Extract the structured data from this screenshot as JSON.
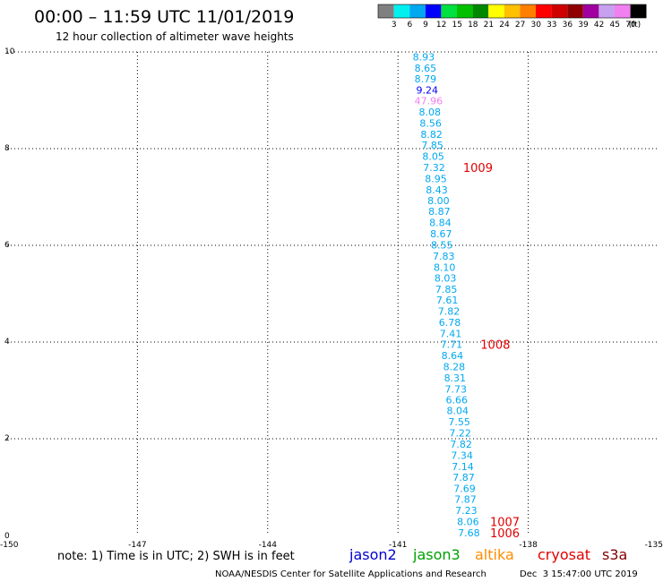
{
  "header": {
    "title": "00:00 – 11:59 UTC 11/01/2019",
    "subtitle": "12 hour collection of altimeter wave heights"
  },
  "legend": {
    "colors": [
      "#808080",
      "#00f0f0",
      "#00a8f0",
      "#0000ff",
      "#00e040",
      "#00c000",
      "#008800",
      "#ffff00",
      "#ffc000",
      "#ff8000",
      "#ff0000",
      "#d00000",
      "#900000",
      "#a000a0",
      "#c8a0f0",
      "#f080f0",
      "#000000"
    ],
    "labels": [
      "3",
      "6",
      "9",
      "12",
      "15",
      "18",
      "21",
      "24",
      "27",
      "30",
      "33",
      "36",
      "39",
      "42",
      "45",
      "70",
      "(ft)"
    ]
  },
  "chart_data": {
    "type": "scatter",
    "xlim": [
      -150,
      -135
    ],
    "ylim": [
      0,
      10
    ],
    "x_ticks": [
      "-150",
      "-147",
      "-144",
      "-141",
      "-138",
      "-135"
    ],
    "y_ticks": [
      "0",
      "2",
      "4",
      "6",
      "8",
      "10"
    ],
    "grid": true,
    "swh_points": [
      {
        "x": -140.66,
        "y": 9.9,
        "label": "8.93",
        "color": "#00a8f0"
      },
      {
        "x": -140.62,
        "y": 9.67,
        "label": "8.65",
        "color": "#00a8f0"
      },
      {
        "x": -140.62,
        "y": 9.44,
        "label": "8.79",
        "color": "#00a8f0"
      },
      {
        "x": -140.58,
        "y": 9.21,
        "label": "9.24",
        "color": "#0000ff"
      },
      {
        "x": -140.62,
        "y": 8.99,
        "label": "47.96",
        "color": "#f080f0"
      },
      {
        "x": -140.52,
        "y": 8.76,
        "label": "8.08",
        "color": "#00a8f0"
      },
      {
        "x": -140.5,
        "y": 8.53,
        "label": "8.56",
        "color": "#00a8f0"
      },
      {
        "x": -140.48,
        "y": 8.3,
        "label": "8.82",
        "color": "#00a8f0"
      },
      {
        "x": -140.46,
        "y": 8.07,
        "label": "7.85",
        "color": "#00a8f0"
      },
      {
        "x": -140.44,
        "y": 7.84,
        "label": "8.05",
        "color": "#00a8f0"
      },
      {
        "x": -140.42,
        "y": 7.61,
        "label": "7.32",
        "color": "#00a8f0"
      },
      {
        "x": -140.38,
        "y": 7.38,
        "label": "8.95",
        "color": "#00a8f0"
      },
      {
        "x": -140.36,
        "y": 7.15,
        "label": "8.43",
        "color": "#00a8f0"
      },
      {
        "x": -140.32,
        "y": 6.93,
        "label": "8.00",
        "color": "#00a8f0"
      },
      {
        "x": -140.3,
        "y": 6.7,
        "label": "8.87",
        "color": "#00a8f0"
      },
      {
        "x": -140.28,
        "y": 6.47,
        "label": "8.84",
        "color": "#00a8f0"
      },
      {
        "x": -140.26,
        "y": 6.24,
        "label": "8.67",
        "color": "#00a8f0"
      },
      {
        "x": -140.24,
        "y": 6.01,
        "label": "8.55",
        "color": "#00a8f0"
      },
      {
        "x": -140.2,
        "y": 5.78,
        "label": "7.83",
        "color": "#00a8f0"
      },
      {
        "x": -140.18,
        "y": 5.55,
        "label": "8.10",
        "color": "#00a8f0"
      },
      {
        "x": -140.16,
        "y": 5.32,
        "label": "8.03",
        "color": "#00a8f0"
      },
      {
        "x": -140.14,
        "y": 5.09,
        "label": "7.85",
        "color": "#00a8f0"
      },
      {
        "x": -140.12,
        "y": 4.87,
        "label": "7.61",
        "color": "#00a8f0"
      },
      {
        "x": -140.08,
        "y": 4.64,
        "label": "7.82",
        "color": "#00a8f0"
      },
      {
        "x": -140.06,
        "y": 4.41,
        "label": "6.78",
        "color": "#00a8f0"
      },
      {
        "x": -140.04,
        "y": 4.18,
        "label": "7.41",
        "color": "#00a8f0"
      },
      {
        "x": -140.02,
        "y": 3.95,
        "label": "7.71",
        "color": "#00a8f0"
      },
      {
        "x": -140.0,
        "y": 3.72,
        "label": "8.64",
        "color": "#00a8f0"
      },
      {
        "x": -139.96,
        "y": 3.49,
        "label": "8.28",
        "color": "#00a8f0"
      },
      {
        "x": -139.94,
        "y": 3.26,
        "label": "8.31",
        "color": "#00a8f0"
      },
      {
        "x": -139.92,
        "y": 3.03,
        "label": "7.73",
        "color": "#00a8f0"
      },
      {
        "x": -139.9,
        "y": 2.81,
        "label": "6.66",
        "color": "#00a8f0"
      },
      {
        "x": -139.88,
        "y": 2.58,
        "label": "8.04",
        "color": "#00a8f0"
      },
      {
        "x": -139.84,
        "y": 2.35,
        "label": "7.55",
        "color": "#00a8f0"
      },
      {
        "x": -139.82,
        "y": 2.12,
        "label": "7.22",
        "color": "#00a8f0"
      },
      {
        "x": -139.8,
        "y": 1.89,
        "label": "7.82",
        "color": "#00a8f0"
      },
      {
        "x": -139.78,
        "y": 1.66,
        "label": "7.34",
        "color": "#00a8f0"
      },
      {
        "x": -139.76,
        "y": 1.43,
        "label": "7.14",
        "color": "#00a8f0"
      },
      {
        "x": -139.74,
        "y": 1.2,
        "label": "7.87",
        "color": "#00a8f0"
      },
      {
        "x": -139.72,
        "y": 0.97,
        "label": "7.69",
        "color": "#00a8f0"
      },
      {
        "x": -139.7,
        "y": 0.75,
        "label": "7.87",
        "color": "#00a8f0"
      },
      {
        "x": -139.68,
        "y": 0.52,
        "label": "7.23",
        "color": "#00a8f0"
      },
      {
        "x": -139.64,
        "y": 0.29,
        "label": "8.06",
        "color": "#00a8f0"
      },
      {
        "x": -139.62,
        "y": 0.06,
        "label": "7.68",
        "color": "#00a8f0"
      }
    ],
    "pressure_labels": [
      {
        "x": -139.5,
        "y": 7.61,
        "label": "1009",
        "color": "#e00000"
      },
      {
        "x": -139.1,
        "y": 3.95,
        "label": "1008",
        "color": "#e00000"
      },
      {
        "x": -138.88,
        "y": 0.29,
        "label": "1007",
        "color": "#e00000"
      },
      {
        "x": -138.88,
        "y": 0.06,
        "label": "1006",
        "color": "#e00000"
      }
    ]
  },
  "footer": {
    "note": "note:  1) Time is in UTC;  2) SWH is in feet",
    "satellites": [
      {
        "name": "jason2",
        "color": "#0000d0"
      },
      {
        "name": "jason3",
        "color": "#00a000"
      },
      {
        "name": "altika",
        "color": "#ff8c00"
      },
      {
        "name": "cryosat",
        "color": "#e00000"
      },
      {
        "name": "s3a",
        "color": "#800000"
      }
    ],
    "credit": "NOAA/NESDIS Center for Satellite Applications and Research",
    "timestamp": "Dec  3 15:47:00 UTC 2019"
  }
}
